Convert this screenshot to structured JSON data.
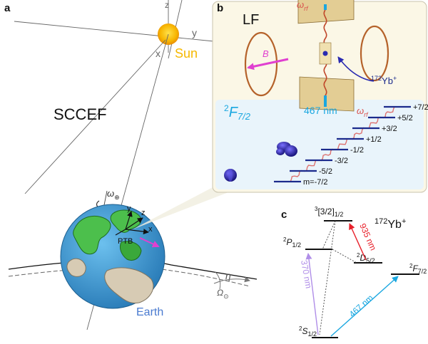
{
  "panels": {
    "a": {
      "label": "a",
      "frame_name": "SCCEF",
      "sun_label": "Sun",
      "sun_axes": {
        "x": "x",
        "y": "y",
        "z": "z"
      },
      "earth_label": "Earth",
      "site_label": "PTB",
      "site_axes": {
        "x": "x",
        "y": "y",
        "z": "z"
      },
      "earth_rotation": {
        "omega": "ω",
        "sub": "⊕"
      },
      "orbit_angle": "η",
      "orbit_rate": {
        "omega": "Ω",
        "sub": "⊙"
      }
    },
    "b": {
      "label": "b",
      "frame_name": "LF",
      "field_label": "B",
      "rf_label": {
        "omega": "ω",
        "sub": "rf"
      },
      "ion": {
        "mass": "172",
        "element": "Yb",
        "charge": "+"
      },
      "laser_label": "467 nm",
      "manifold": {
        "symbol": "F",
        "pre": "2",
        "sub": "7/2"
      },
      "rf_label_2": {
        "omega": "ω",
        "sub": "rf"
      },
      "zeeman_levels": [
        "+7/2",
        "+5/2",
        "+3/2",
        "+1/2",
        "-1/2",
        "-3/2",
        "-5/2",
        "m=-7/2"
      ]
    },
    "c": {
      "label": "c",
      "ion": {
        "mass": "172",
        "element": "Yb",
        "charge": "+"
      },
      "levels": {
        "ground": {
          "pre": "2",
          "sym": "S",
          "sub": "1/2"
        },
        "p": {
          "pre": "2",
          "sym": "P",
          "sub": "1/2"
        },
        "d": {
          "pre": "2",
          "sym": "D",
          "sub": "5/2"
        },
        "f": {
          "pre": "2",
          "sym": "F",
          "sub": "7/2"
        },
        "upper": {
          "pre": "3",
          "sym": "[3/2]",
          "sub": "1/2"
        }
      },
      "transitions": {
        "t370": "370 nm",
        "t935": "935 nm",
        "t467": "467 nm"
      }
    }
  },
  "colors": {
    "sun": "#f5b800",
    "earth_ocean": "#3e97cf",
    "earth_land": "#4cbf4c",
    "b_arrow": "#e040d0",
    "level": "#1b2a8c",
    "uv": "#b08ee8",
    "repump": "#e8202a",
    "octupole": "#1aa7e0",
    "coil": "#b5622a",
    "inset_bg": "#fbf7e6",
    "inset_lower": "#e9f4fb",
    "rf_red": "#d9534f",
    "ion_blue": "#3a2fb0"
  }
}
